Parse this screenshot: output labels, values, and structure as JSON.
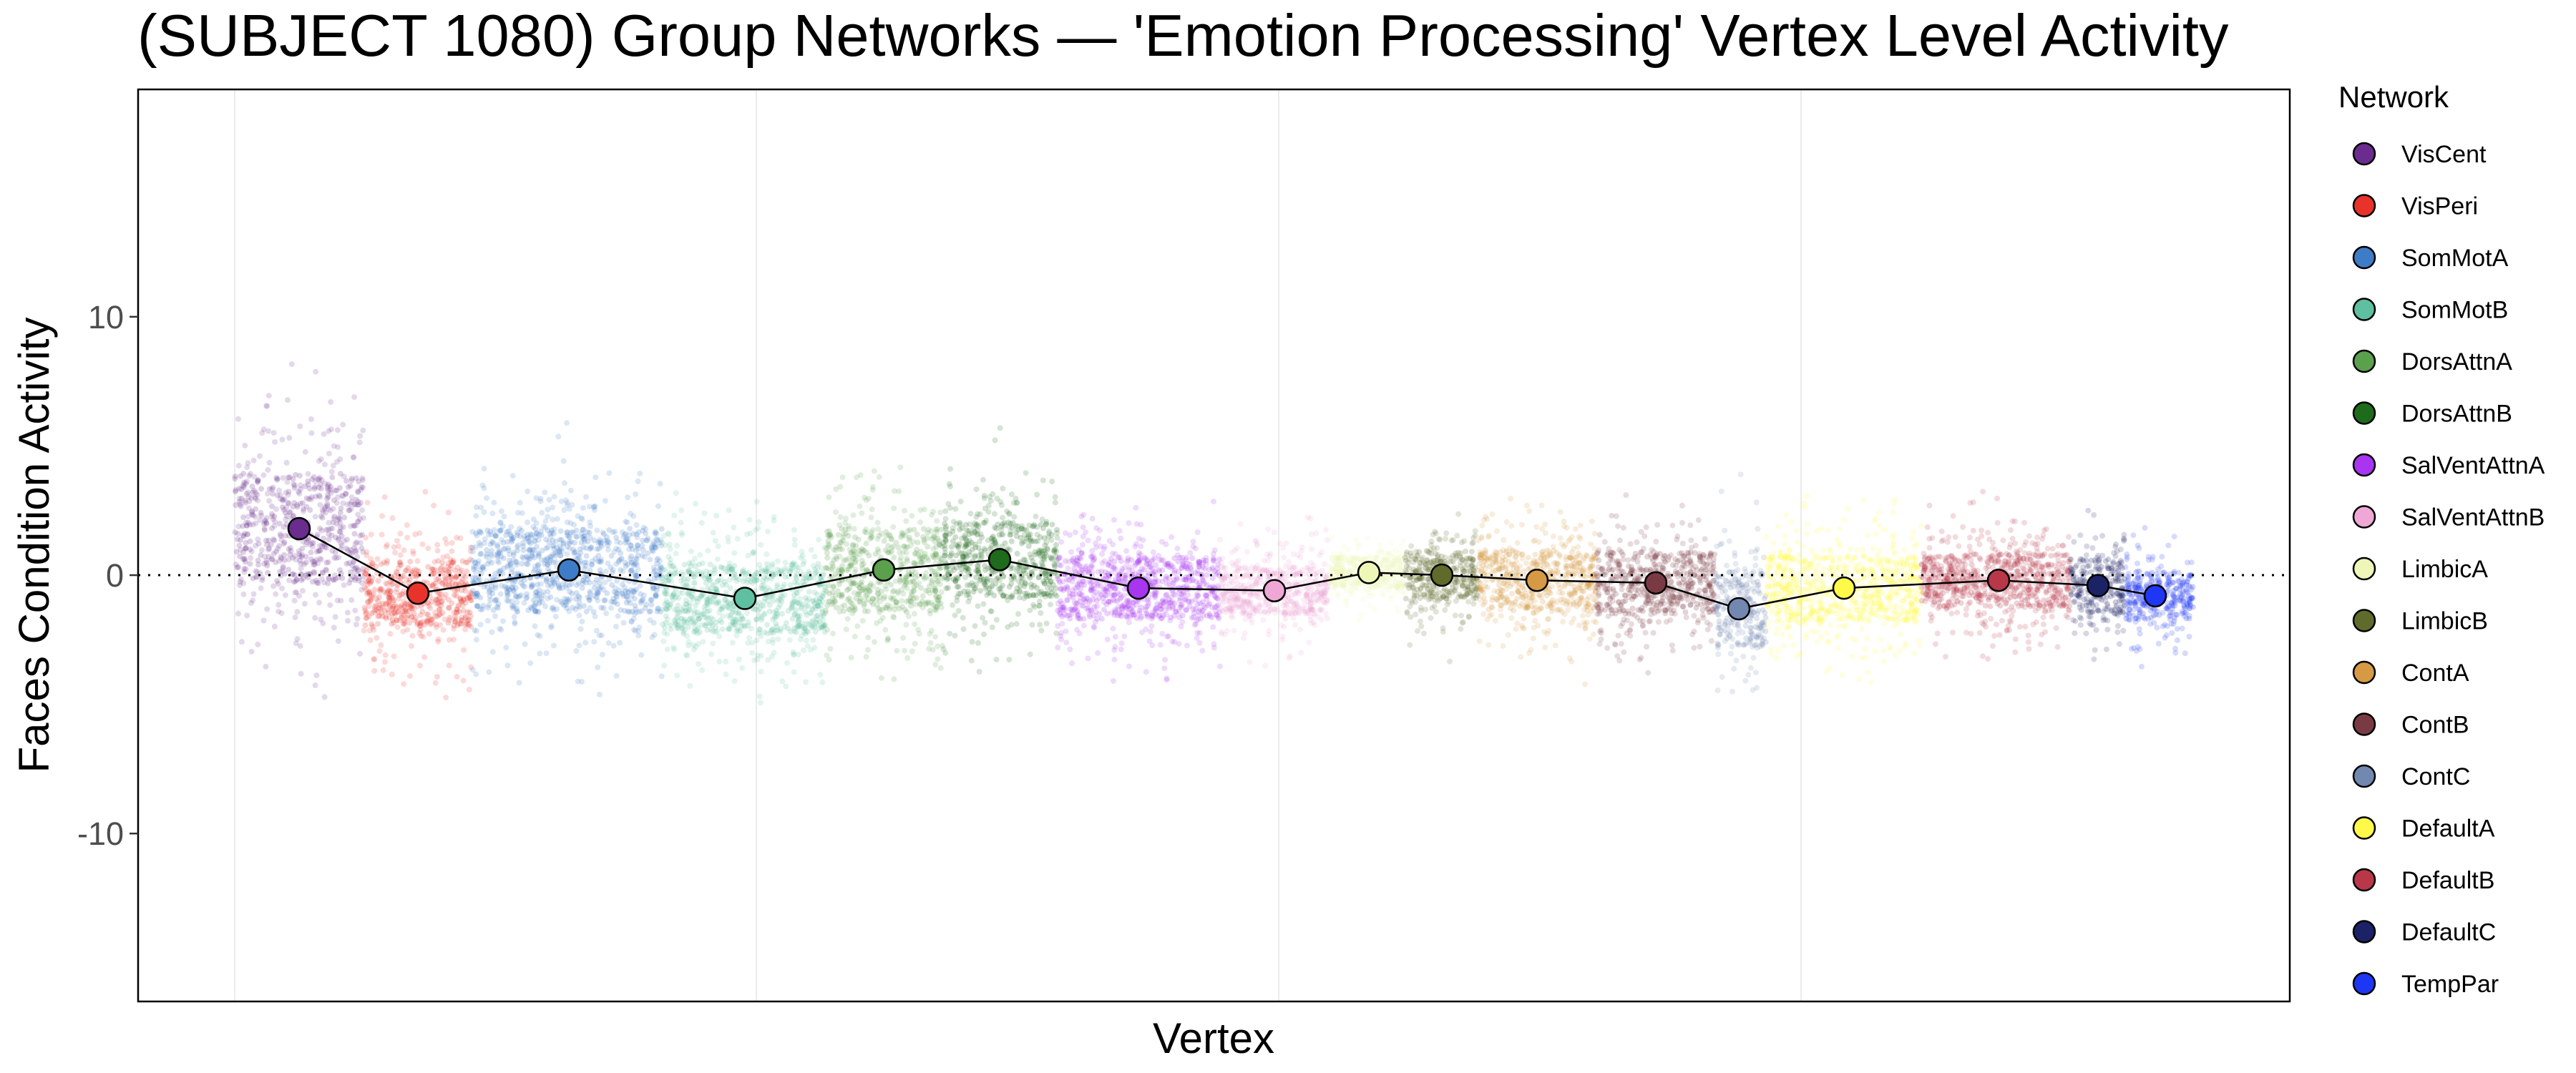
{
  "chart_data": {
    "type": "scatter",
    "title": "(SUBJECT 1080) Group Networks — 'Emotion Processing' Vertex Level Activity",
    "xlabel": "Vertex",
    "ylabel": "Faces Condition Activity",
    "ylim": [
      -16.5,
      18.8
    ],
    "yticks": [
      -10,
      0,
      10
    ],
    "ytick_labels": [
      "-10",
      "0",
      "10"
    ],
    "reference_line_y": 0,
    "grid": true,
    "legend": {
      "title": "Network",
      "position": "right"
    },
    "networks": [
      {
        "name": "VisCent",
        "color": "#6A2C8E",
        "mean": 1.8
      },
      {
        "name": "VisPeri",
        "color": "#E8332A",
        "mean": -0.7
      },
      {
        "name": "SomMotA",
        "color": "#3E7CC7",
        "mean": 0.2
      },
      {
        "name": "SomMotB",
        "color": "#5EC0A0",
        "mean": -0.9
      },
      {
        "name": "DorsAttnA",
        "color": "#5BA04C",
        "mean": 0.2
      },
      {
        "name": "DorsAttnB",
        "color": "#1E6B1C",
        "mean": 0.6
      },
      {
        "name": "SalVentAttnA",
        "color": "#A835F0",
        "mean": -0.5
      },
      {
        "name": "SalVentAttnB",
        "color": "#EFA8D6",
        "mean": -0.6
      },
      {
        "name": "LimbicA",
        "color": "#EEF7B8",
        "mean": 0.1
      },
      {
        "name": "LimbicB",
        "color": "#5E6B2A",
        "mean": 0.0
      },
      {
        "name": "ContA",
        "color": "#D69A45",
        "mean": -0.2
      },
      {
        "name": "ContB",
        "color": "#7A3A44",
        "mean": -0.3
      },
      {
        "name": "ContC",
        "color": "#7388B0",
        "mean": -1.3
      },
      {
        "name": "DefaultA",
        "color": "#FFF94A",
        "mean": -0.5
      },
      {
        "name": "DefaultB",
        "color": "#B8384A",
        "mean": -0.2
      },
      {
        "name": "DefaultC",
        "color": "#1B2266",
        "mean": -0.4
      },
      {
        "name": "TempPar",
        "color": "#1E37F5",
        "mean": -0.8
      }
    ]
  }
}
